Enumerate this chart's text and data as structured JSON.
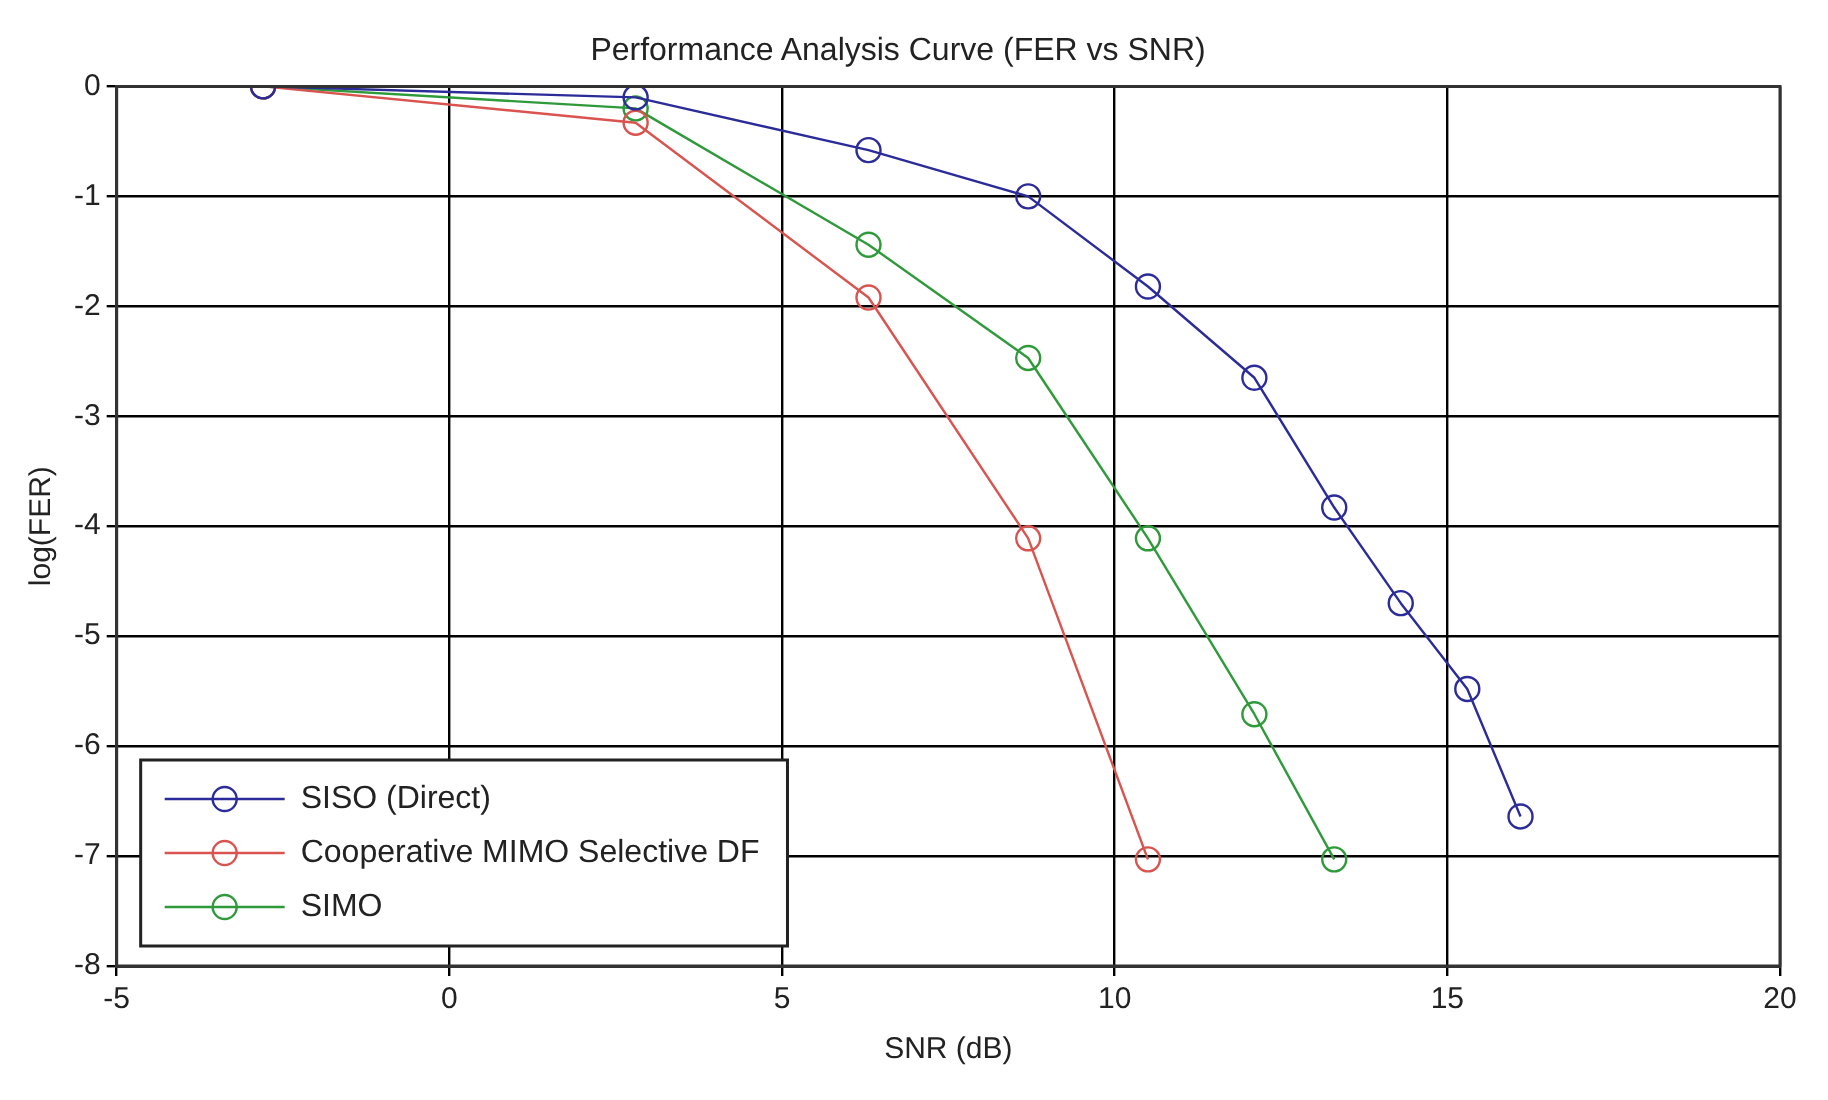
{
  "chart_data": {
    "type": "line",
    "title": "Performance Analysis Curve (FER vs SNR)",
    "xlabel": "SNR (dB)",
    "ylabel": "log(FER)",
    "xlim": [
      -5,
      20
    ],
    "xticks": [
      -5,
      0,
      5,
      10,
      15,
      20
    ],
    "ylim": [
      -8,
      0
    ],
    "yticks": [
      -8,
      -7,
      -6,
      -5,
      -4,
      -3,
      -2,
      -1,
      0
    ],
    "grid": true,
    "legend": "bottom left",
    "marker": "circle",
    "line_style": "solid",
    "series": [
      {
        "name": "SISO (Direct)",
        "color": "#2b2b9a",
        "x": [
          -2.8,
          2.8,
          6.3,
          8.7,
          10.5,
          12.1,
          13.3,
          14.3,
          15.3,
          16.1
        ],
        "values": [
          0,
          -0.1,
          -0.58,
          -1.0,
          -1.82,
          -2.65,
          -3.83,
          -4.7,
          -5.48,
          -6.64
        ]
      },
      {
        "name": "Cooperative MIMO Selective DF",
        "color": "#d9534f",
        "x": [
          -2.8,
          2.8,
          6.3,
          8.7,
          10.5
        ],
        "values": [
          0,
          -0.33,
          -1.92,
          -4.11,
          -7.03
        ]
      },
      {
        "name": "SIMO",
        "color": "#2e9a3a",
        "x": [
          -2.8,
          2.8,
          6.3,
          8.7,
          10.5,
          12.1,
          13.3
        ],
        "values": [
          0,
          -0.2,
          -1.44,
          -2.47,
          -4.11,
          -5.71,
          -7.03
        ]
      }
    ]
  }
}
